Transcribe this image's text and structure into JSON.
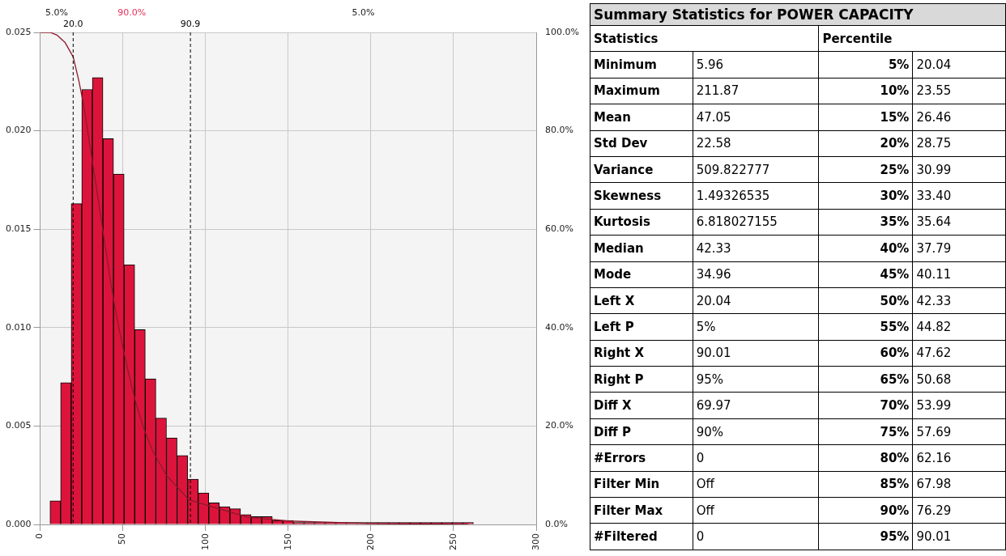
{
  "chart_data": [
    {
      "type": "histogram",
      "bins": [
        6,
        12.4,
        18.8,
        25.2,
        31.6,
        38,
        44.4,
        50.8,
        57.2,
        63.6,
        70,
        76.4,
        82.8,
        89.2,
        95.6,
        102,
        108.4,
        114.8,
        121.2,
        127.6,
        134,
        140.4,
        146.8,
        153.2,
        159.6,
        166,
        172.4,
        178.8,
        185.2,
        191.6,
        198,
        204.4,
        210.8,
        217.2,
        223.6,
        230,
        236.4,
        242.8,
        249.2,
        255.6,
        262
      ],
      "series": [
        {
          "type": "histogram",
          "color": "#dc143c",
          "values": [
            0.0012,
            0.0072,
            0.0163,
            0.0221,
            0.0227,
            0.0196,
            0.0178,
            0.0132,
            0.0099,
            0.0074,
            0.0054,
            0.0044,
            0.0035,
            0.0023,
            0.0016,
            0.0011,
            0.0009,
            0.0008,
            0.0005,
            0.0004,
            0.0004,
            0.0002,
            0.0002,
            0.0001,
            0.0001,
            0.0001,
            0.0001,
            0.0001,
            0.0001,
            0.0001,
            0.0001,
            0.0001,
            0.0001,
            0.0001,
            0.0001,
            0.0001,
            0.0001,
            0.0001,
            0.0001,
            0.0001
          ]
        },
        {
          "type": "line",
          "axis": "y2",
          "color": "#8b1a2a",
          "x": [
            0,
            6,
            10,
            15,
            20.04,
            23.55,
            26.46,
            28.75,
            30.99,
            33.4,
            35.64,
            37.79,
            40.11,
            42.33,
            44.82,
            47.62,
            50.68,
            53.99,
            57.69,
            62.16,
            67.98,
            76.29,
            90.01,
            100,
            125,
            150,
            200,
            259
          ],
          "values": [
            100,
            100,
            99.5,
            98,
            95,
            90,
            85,
            80,
            75,
            70,
            65,
            60,
            55,
            50,
            45,
            40,
            35,
            30,
            25,
            20,
            15,
            10,
            5,
            4,
            1.5,
            0.7,
            0.2,
            0
          ]
        }
      ],
      "xlim": [
        0,
        300
      ],
      "xticks": [
        0,
        50,
        100,
        150,
        200,
        250,
        300
      ],
      "ylim": [
        0,
        0.025
      ],
      "yticks": [
        {
          "value": 0,
          "label": "0.000"
        },
        {
          "value": 0.005,
          "label": "0.005"
        },
        {
          "value": 0.01,
          "label": "0.010"
        },
        {
          "value": 0.015,
          "label": "0.015"
        },
        {
          "value": 0.02,
          "label": "0.020"
        },
        {
          "value": 0.025,
          "label": "0.025"
        }
      ],
      "y2lim": [
        0,
        100
      ],
      "y2ticks": [
        {
          "value": 0,
          "label": "0.0%"
        },
        {
          "value": 20,
          "label": "20.0%"
        },
        {
          "value": 40,
          "label": "40.0%"
        },
        {
          "value": 60,
          "label": "60.0%"
        },
        {
          "value": 80,
          "label": "80.0%"
        },
        {
          "value": 100,
          "label": "100.0%"
        }
      ],
      "grid": true,
      "legend": false,
      "ref_lines": [
        {
          "axis": "x",
          "value": 20.0,
          "label": "20.0",
          "line_style": "dashed"
        },
        {
          "axis": "x",
          "value": 90.9,
          "label": "90.9",
          "line_style": "dashed"
        }
      ],
      "annotations": [
        "5.0%",
        "90.0%",
        "5.0%"
      ]
    },
    {
      "type": "other",
      "title": "Summary Statistics for POWER CAPACITY",
      "annotations": [
        "Statistics",
        "Percentile",
        "Minimum",
        "5.96",
        "5%",
        "20.04",
        "Maximum",
        "211.87",
        "10%",
        "23.55",
        "Mean",
        "47.05",
        "15%",
        "26.46",
        "Std Dev",
        "22.58",
        "20%",
        "28.75",
        "Variance",
        "509.822777",
        "25%",
        "30.99",
        "Skewness",
        "1.49326535",
        "30%",
        "33.40",
        "Kurtosis",
        "6.818027155",
        "35%",
        "35.64",
        "Median",
        "42.33",
        "40%",
        "37.79",
        "Mode",
        "34.96",
        "45%",
        "40.11",
        "Left X",
        "20.04",
        "50%",
        "42.33",
        "Left P",
        "5%",
        "55%",
        "44.82",
        "Right X",
        "90.01",
        "60%",
        "47.62",
        "Right P",
        "95%",
        "65%",
        "50.68",
        "Diff X",
        "69.97",
        "70%",
        "53.99",
        "Diff P",
        "90%",
        "75%",
        "57.69",
        "#Errors",
        "0",
        "80%",
        "62.16",
        "Filter Min",
        "Off",
        "85%",
        "67.98",
        "Filter Max",
        "Off",
        "90%",
        "76.29",
        "#Filtered",
        "0",
        "95%",
        "90.01"
      ]
    }
  ]
}
